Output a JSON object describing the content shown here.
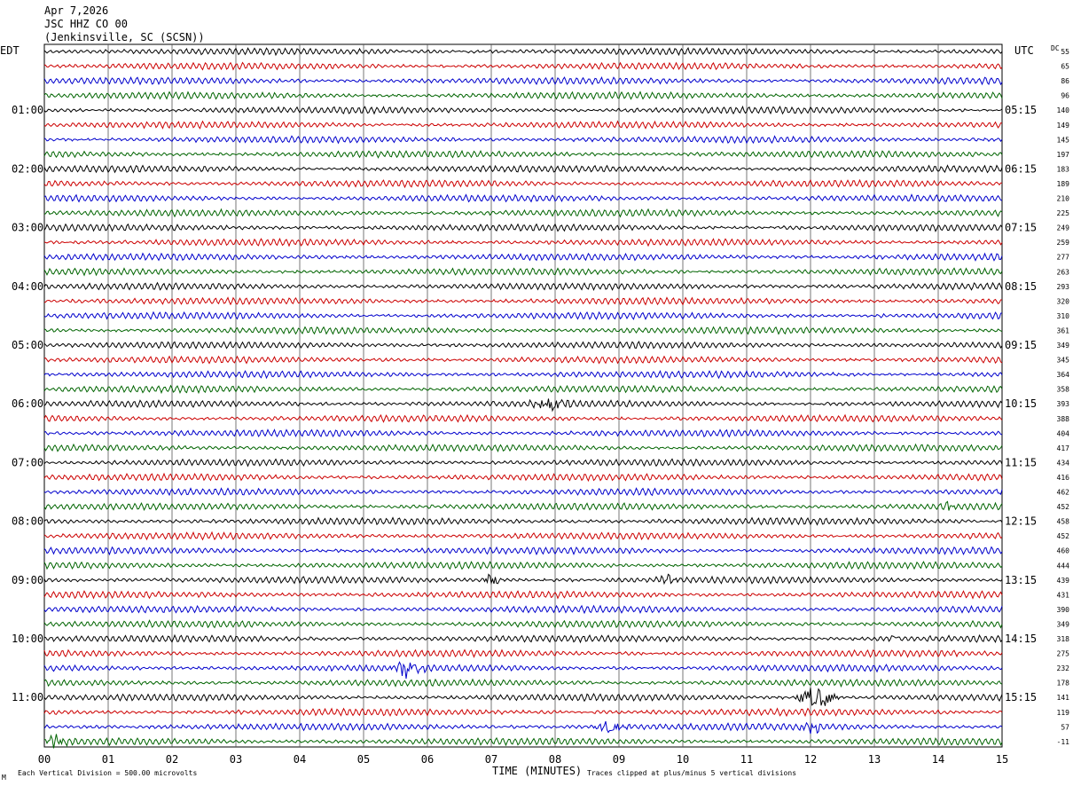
{
  "header": {
    "date": "Apr 7,2026",
    "station": "JSC HHZ CO 00",
    "location": "(Jenkinsville, SC (SCSN))"
  },
  "left_zone_label": "EDT",
  "right_zone_label": "UTC",
  "dc_label": "DC",
  "footer": {
    "scale_note": "Each Vertical Division =  500.00 microvolts",
    "clip_note": "Traces clipped at plus/minus 5 vertical divisions",
    "corner_mark": "M"
  },
  "chart_data": {
    "type": "line",
    "title": "",
    "xlabel": "TIME (MINUTES)",
    "ylabel": "",
    "xlim": [
      0,
      15
    ],
    "x_ticks": [
      "00",
      "01",
      "02",
      "03",
      "04",
      "05",
      "06",
      "07",
      "08",
      "09",
      "10",
      "11",
      "12",
      "13",
      "14",
      "15"
    ],
    "grid": true,
    "trace_count": 48,
    "trace_colors": [
      "#000000",
      "#cc0000",
      "#0000cc",
      "#006400"
    ],
    "left_hour_labels": [
      "01:00",
      "02:00",
      "03:00",
      "04:00",
      "05:00",
      "06:00",
      "07:00",
      "08:00",
      "09:00",
      "10:00",
      "11:00"
    ],
    "right_hour_labels": [
      "05:15",
      "06:15",
      "07:15",
      "08:15",
      "09:15",
      "10:15",
      "11:15",
      "12:15",
      "13:15",
      "14:15",
      "15:15"
    ],
    "dc_offsets": [
      55,
      65,
      86,
      96,
      140,
      149,
      145,
      197,
      183,
      189,
      210,
      225,
      249,
      259,
      277,
      263,
      293,
      320,
      310,
      361,
      349,
      345,
      364,
      358,
      393,
      388,
      404,
      417,
      434,
      416,
      462,
      452,
      458,
      452,
      460,
      444,
      439,
      431,
      390,
      349,
      318,
      275,
      232,
      178,
      141,
      119,
      57,
      -11
    ],
    "events": [
      {
        "trace": 24,
        "start_min": 7.5,
        "end_min": 8.3,
        "amplitude": "moderate"
      },
      {
        "trace": 30,
        "start_min": 14.9,
        "end_min": 15.0,
        "amplitude": "spike"
      },
      {
        "trace": 31,
        "start_min": 14.0,
        "end_min": 14.3,
        "amplitude": "small"
      },
      {
        "trace": 36,
        "start_min": 6.8,
        "end_min": 7.2,
        "amplitude": "moderate"
      },
      {
        "trace": 36,
        "start_min": 9.5,
        "end_min": 10.0,
        "amplitude": "small"
      },
      {
        "trace": 40,
        "start_min": 13.2,
        "end_min": 13.4,
        "amplitude": "small"
      },
      {
        "trace": 42,
        "start_min": 5.3,
        "end_min": 6.0,
        "amplitude": "large"
      },
      {
        "trace": 44,
        "start_min": 11.7,
        "end_min": 12.5,
        "amplitude": "large"
      },
      {
        "trace": 46,
        "start_min": 8.5,
        "end_min": 9.2,
        "amplitude": "moderate"
      },
      {
        "trace": 46,
        "start_min": 11.8,
        "end_min": 12.2,
        "amplitude": "moderate"
      },
      {
        "trace": 47,
        "start_min": 0.0,
        "end_min": 0.4,
        "amplitude": "moderate"
      }
    ]
  }
}
